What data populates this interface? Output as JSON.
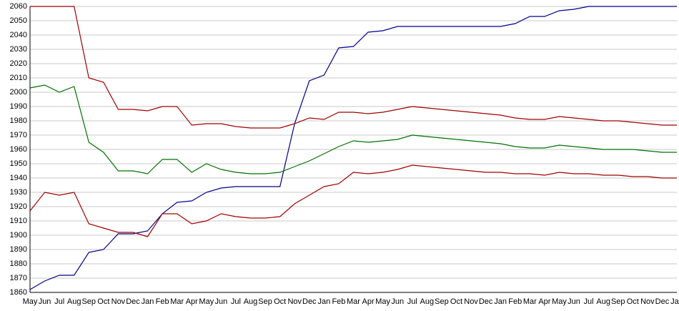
{
  "chart_data": {
    "type": "line",
    "categories": [
      "May",
      "Jun",
      "Jul",
      "Aug",
      "Sep",
      "Oct",
      "Nov",
      "Dec",
      "Jan",
      "Feb",
      "Mar",
      "Apr",
      "May",
      "Jun",
      "Jul",
      "Aug",
      "Sep",
      "Oct",
      "Nov",
      "Dec",
      "Jan",
      "Feb",
      "Mar",
      "Apr",
      "May",
      "Jun",
      "Jul",
      "Aug",
      "Sep",
      "Oct",
      "Nov",
      "Dec",
      "Jan",
      "Feb",
      "Mar",
      "Apr",
      "May",
      "Jun",
      "Jul",
      "Aug",
      "Sep",
      "Oct",
      "Nov",
      "Dec",
      "Jan"
    ],
    "ylim": [
      1860,
      2060
    ],
    "yticks": [
      1860,
      1870,
      1880,
      1890,
      1900,
      1910,
      1920,
      1930,
      1940,
      1950,
      1960,
      1970,
      1980,
      1990,
      2000,
      2010,
      2020,
      2030,
      2040,
      2050,
      2060
    ],
    "grid": true,
    "series": [
      {
        "color": "#00008b",
        "values": [
          1862,
          1868,
          1872,
          1872,
          1888,
          1890,
          1901,
          1901,
          1903,
          1915,
          1923,
          1924,
          1930,
          1933,
          1934,
          1934,
          1934,
          1934,
          1978,
          2008,
          2012,
          2031,
          2032,
          2042,
          2043,
          2046,
          2046,
          2046,
          2046,
          2046,
          2046,
          2046,
          2046,
          2048,
          2053,
          2053,
          2057,
          2058,
          2060,
          2060,
          2060,
          2060,
          2060,
          2060,
          2060
        ]
      },
      {
        "color": "#a00000",
        "values": [
          2060,
          2060,
          2060,
          2060,
          2010,
          2007,
          1988,
          1988,
          1987,
          1990,
          1990,
          1977,
          1978,
          1978,
          1976,
          1975,
          1975,
          1975,
          1978,
          1982,
          1981,
          1986,
          1986,
          1985,
          1986,
          1988,
          1990,
          1989,
          1988,
          1987,
          1986,
          1985,
          1984,
          1982,
          1981,
          1981,
          1983,
          1982,
          1981,
          1980,
          1980,
          1979,
          1978,
          1977,
          1977
        ]
      },
      {
        "color": "#007000",
        "values": [
          2003,
          2005,
          2000,
          2004,
          1965,
          1958,
          1945,
          1945,
          1943,
          1953,
          1953,
          1944,
          1950,
          1946,
          1944,
          1943,
          1943,
          1944,
          1948,
          1952,
          1957,
          1962,
          1966,
          1965,
          1966,
          1967,
          1970,
          1969,
          1968,
          1967,
          1966,
          1965,
          1964,
          1962,
          1961,
          1961,
          1963,
          1962,
          1961,
          1960,
          1960,
          1960,
          1959,
          1958,
          1958
        ]
      },
      {
        "color": "#a00000",
        "values": [
          1917,
          1930,
          1928,
          1930,
          1908,
          1905,
          1902,
          1902,
          1899,
          1915,
          1915,
          1908,
          1910,
          1915,
          1913,
          1912,
          1912,
          1913,
          1922,
          1928,
          1934,
          1936,
          1944,
          1943,
          1944,
          1946,
          1949,
          1948,
          1947,
          1946,
          1945,
          1944,
          1944,
          1943,
          1943,
          1942,
          1944,
          1943,
          1943,
          1942,
          1942,
          1941,
          1941,
          1940,
          1940
        ]
      }
    ]
  }
}
